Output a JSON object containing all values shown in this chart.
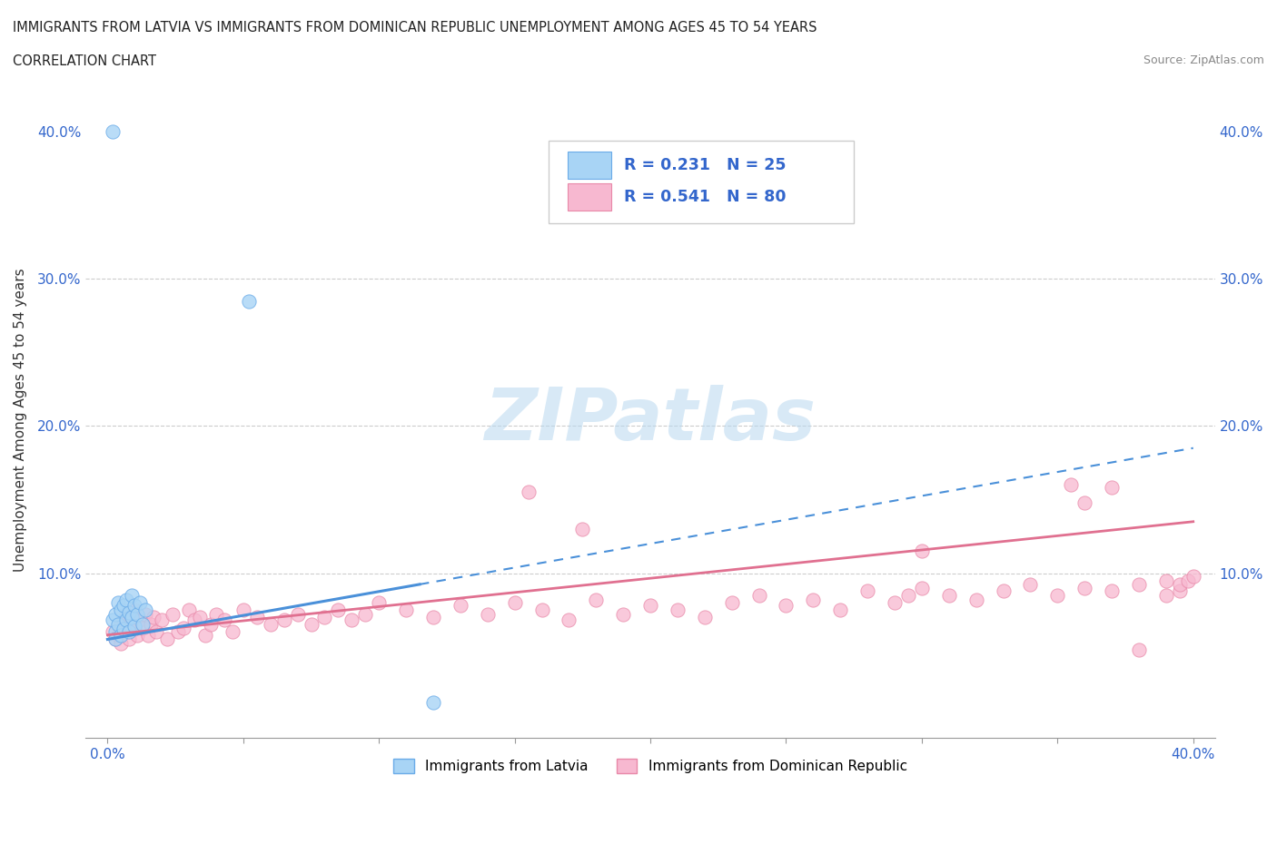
{
  "title_line1": "IMMIGRANTS FROM LATVIA VS IMMIGRANTS FROM DOMINICAN REPUBLIC UNEMPLOYMENT AMONG AGES 45 TO 54 YEARS",
  "title_line2": "CORRELATION CHART",
  "source": "Source: ZipAtlas.com",
  "ylabel": "Unemployment Among Ages 45 to 54 years",
  "watermark": "ZIPatlas",
  "legend_R1": "R = 0.231",
  "legend_N1": "N = 25",
  "legend_R2": "R = 0.541",
  "legend_N2": "N = 80",
  "latvia_color_fill": "#a8d4f5",
  "latvia_color_edge": "#6aabe8",
  "domrep_color_fill": "#f7b8d0",
  "domrep_color_edge": "#e888a8",
  "trendline1_color": "#4a90d9",
  "trendline2_color": "#e07090",
  "xmin": 0.0,
  "xmax": 0.4,
  "ymin": 0.0,
  "ymax": 0.4,
  "latvia_x": [
    0.002,
    0.002,
    0.003,
    0.003,
    0.003,
    0.004,
    0.004,
    0.005,
    0.005,
    0.006,
    0.006,
    0.007,
    0.007,
    0.008,
    0.008,
    0.009,
    0.009,
    0.01,
    0.01,
    0.011,
    0.012,
    0.013,
    0.014,
    0.052,
    0.12
  ],
  "latvia_y": [
    0.4,
    0.068,
    0.072,
    0.06,
    0.055,
    0.08,
    0.065,
    0.075,
    0.058,
    0.078,
    0.062,
    0.082,
    0.068,
    0.073,
    0.06,
    0.085,
    0.07,
    0.078,
    0.064,
    0.072,
    0.08,
    0.065,
    0.075,
    0.285,
    0.012
  ],
  "domrep_x": [
    0.002,
    0.003,
    0.004,
    0.005,
    0.005,
    0.006,
    0.007,
    0.007,
    0.008,
    0.008,
    0.009,
    0.01,
    0.01,
    0.011,
    0.012,
    0.013,
    0.014,
    0.015,
    0.016,
    0.017,
    0.018,
    0.02,
    0.022,
    0.024,
    0.026,
    0.028,
    0.03,
    0.032,
    0.034,
    0.036,
    0.038,
    0.04,
    0.043,
    0.046,
    0.05,
    0.055,
    0.06,
    0.065,
    0.07,
    0.075,
    0.08,
    0.085,
    0.09,
    0.095,
    0.1,
    0.11,
    0.12,
    0.13,
    0.14,
    0.15,
    0.16,
    0.17,
    0.18,
    0.19,
    0.2,
    0.21,
    0.22,
    0.23,
    0.24,
    0.25,
    0.26,
    0.27,
    0.28,
    0.29,
    0.295,
    0.3,
    0.31,
    0.32,
    0.33,
    0.34,
    0.35,
    0.36,
    0.37,
    0.38,
    0.39,
    0.39,
    0.395,
    0.395,
    0.398,
    0.4
  ],
  "domrep_y": [
    0.06,
    0.055,
    0.058,
    0.065,
    0.052,
    0.068,
    0.06,
    0.072,
    0.055,
    0.065,
    0.07,
    0.062,
    0.075,
    0.058,
    0.068,
    0.063,
    0.072,
    0.058,
    0.065,
    0.07,
    0.06,
    0.068,
    0.055,
    0.072,
    0.06,
    0.063,
    0.075,
    0.068,
    0.07,
    0.058,
    0.065,
    0.072,
    0.068,
    0.06,
    0.075,
    0.07,
    0.065,
    0.068,
    0.072,
    0.065,
    0.07,
    0.075,
    0.068,
    0.072,
    0.08,
    0.075,
    0.07,
    0.078,
    0.072,
    0.08,
    0.075,
    0.068,
    0.082,
    0.072,
    0.078,
    0.075,
    0.07,
    0.08,
    0.085,
    0.078,
    0.082,
    0.075,
    0.088,
    0.08,
    0.085,
    0.09,
    0.085,
    0.082,
    0.088,
    0.092,
    0.085,
    0.09,
    0.088,
    0.092,
    0.085,
    0.095,
    0.088,
    0.092,
    0.095,
    0.098
  ],
  "latvia_trend_x0": 0.0,
  "latvia_trend_x1": 0.4,
  "latvia_trend_y0": 0.055,
  "latvia_trend_y1": 0.185,
  "latvia_trend_solid_x1": 0.115,
  "domrep_trend_x0": 0.0,
  "domrep_trend_x1": 0.4,
  "domrep_trend_y0": 0.058,
  "domrep_trend_y1": 0.135
}
